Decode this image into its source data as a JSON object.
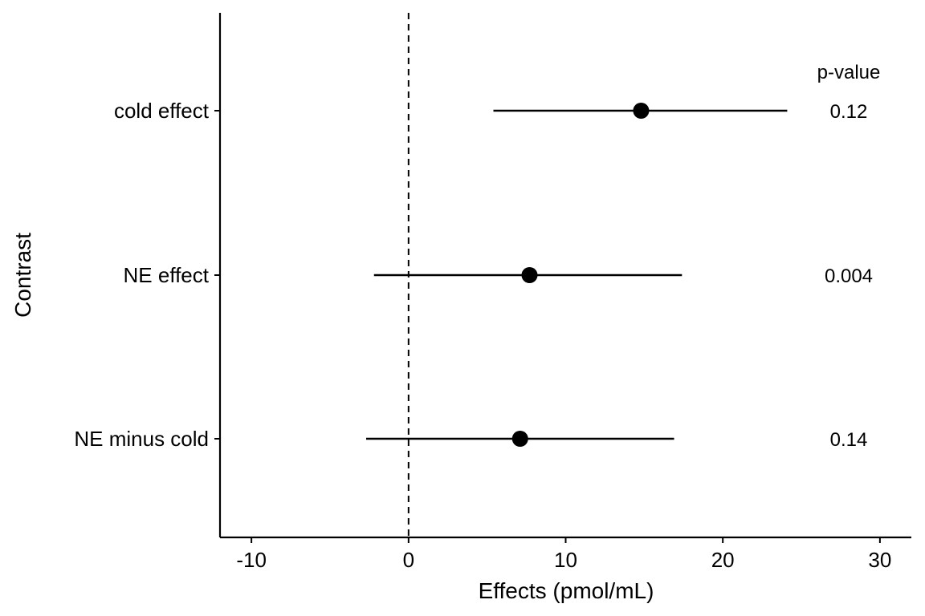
{
  "chart_data": {
    "type": "forest",
    "xlabel": "Effects (pmol/mL)",
    "ylabel": "Contrast",
    "xlim": [
      -12,
      32
    ],
    "x_ticks": [
      "-10",
      "0",
      "10",
      "20",
      "30"
    ],
    "x_tick_values": [
      -10,
      0,
      10,
      20,
      30
    ],
    "reference_line": 0,
    "pvalue_header": "p-value",
    "grid": false,
    "rows": [
      {
        "label": "cold effect",
        "estimate": 14.8,
        "lower": 5.4,
        "upper": 24.1,
        "pvalue": "0.12"
      },
      {
        "label": "NE effect",
        "estimate": 7.7,
        "lower": -2.2,
        "upper": 17.4,
        "pvalue": "0.004"
      },
      {
        "label": "NE minus cold",
        "estimate": 7.1,
        "lower": -2.7,
        "upper": 16.9,
        "pvalue": "0.14"
      }
    ],
    "colors": {
      "marks": "#000000",
      "background": "#ffffff"
    }
  }
}
